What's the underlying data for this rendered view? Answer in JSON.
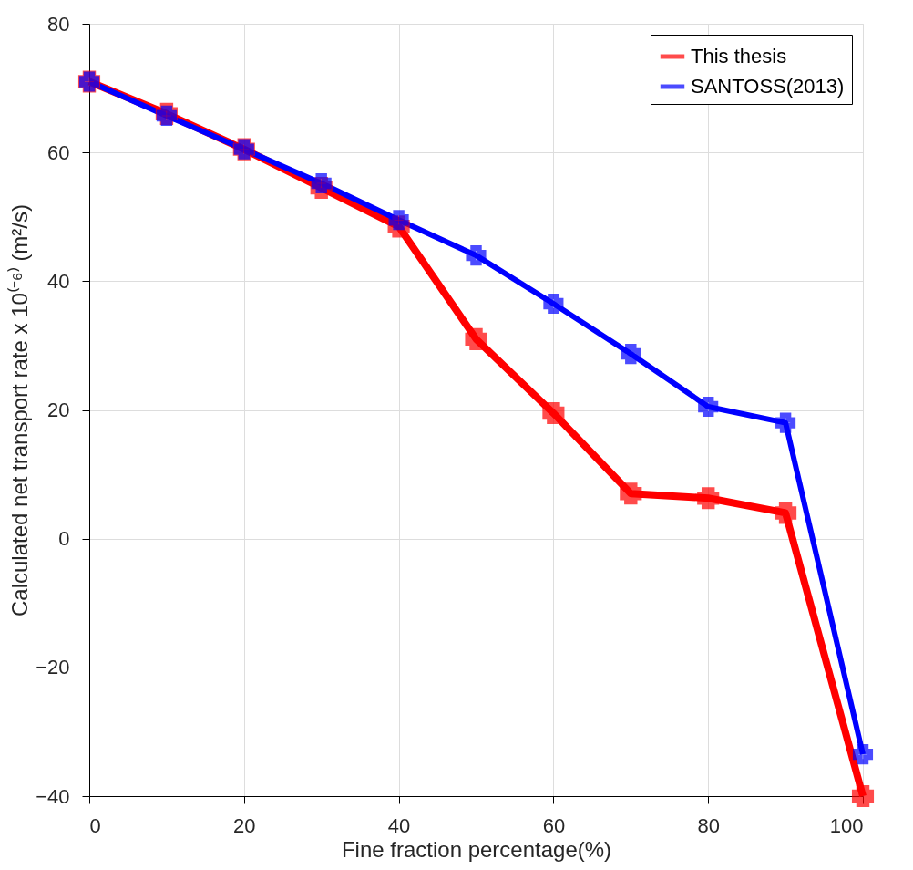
{
  "chart_data": {
    "type": "line",
    "xlabel": "Fine fraction percentage(%)",
    "ylabel": "Calculated net transport rate x 10⁽⁻⁶⁾ (m²/s)",
    "x": [
      0,
      10,
      20,
      30,
      40,
      50,
      60,
      70,
      80,
      90,
      100
    ],
    "series": [
      {
        "name": "This thesis",
        "color": "#ff0000",
        "values": [
          71,
          66,
          60.5,
          54.5,
          48.5,
          31,
          19.5,
          7,
          6.3,
          4,
          -40
        ]
      },
      {
        "name": "SANTOSS(2013)",
        "color": "#0000ff",
        "values": [
          71,
          65.7,
          60.5,
          55.2,
          49.5,
          44,
          36.5,
          28.7,
          20.5,
          18,
          -33.5
        ]
      }
    ],
    "xlim": [
      0,
      100
    ],
    "xticks": [
      0,
      20,
      40,
      60,
      80,
      100
    ],
    "ylim": [
      -40,
      80
    ],
    "yticks": [
      -40,
      -20,
      0,
      20,
      40,
      60,
      80
    ],
    "grid": true,
    "legend": "top right",
    "marker": "cross",
    "line_style": "solid"
  }
}
